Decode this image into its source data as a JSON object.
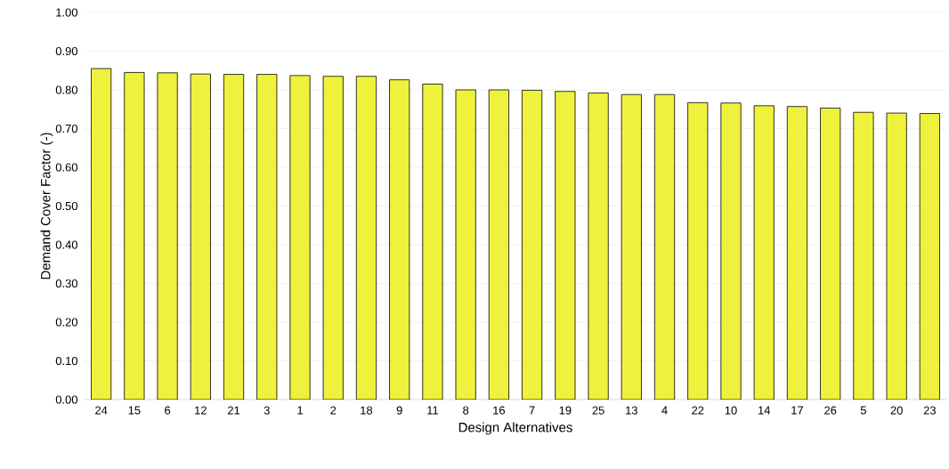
{
  "chart_data": {
    "type": "bar",
    "xlabel": "Design Alternatives",
    "ylabel": "Demand Cover Factor (-)",
    "categories": [
      "24",
      "15",
      "6",
      "12",
      "21",
      "3",
      "1",
      "2",
      "18",
      "9",
      "11",
      "8",
      "16",
      "7",
      "19",
      "25",
      "13",
      "4",
      "22",
      "10",
      "14",
      "17",
      "26",
      "5",
      "20",
      "23"
    ],
    "values": [
      0.855,
      0.845,
      0.844,
      0.841,
      0.84,
      0.84,
      0.837,
      0.835,
      0.835,
      0.826,
      0.815,
      0.8,
      0.8,
      0.799,
      0.796,
      0.792,
      0.788,
      0.788,
      0.767,
      0.766,
      0.759,
      0.757,
      0.753,
      0.742,
      0.74,
      0.739
    ],
    "color": "#eef23c",
    "ylim": [
      0,
      1
    ],
    "yticks": [
      {
        "value": 0,
        "label": "0.00"
      },
      {
        "value": 0.1,
        "label": "0.10"
      },
      {
        "value": 0.2,
        "label": "0.20"
      },
      {
        "value": 0.3,
        "label": "0.30"
      },
      {
        "value": 0.4,
        "label": "0.40"
      },
      {
        "value": 0.5,
        "label": "0.50"
      },
      {
        "value": 0.6,
        "label": "0.60"
      },
      {
        "value": 0.7,
        "label": "0.70"
      },
      {
        "value": 0.8,
        "label": "0.80"
      },
      {
        "value": 0.9,
        "label": "0.90"
      },
      {
        "value": 1,
        "label": "1.00"
      }
    ],
    "grid": "y"
  }
}
